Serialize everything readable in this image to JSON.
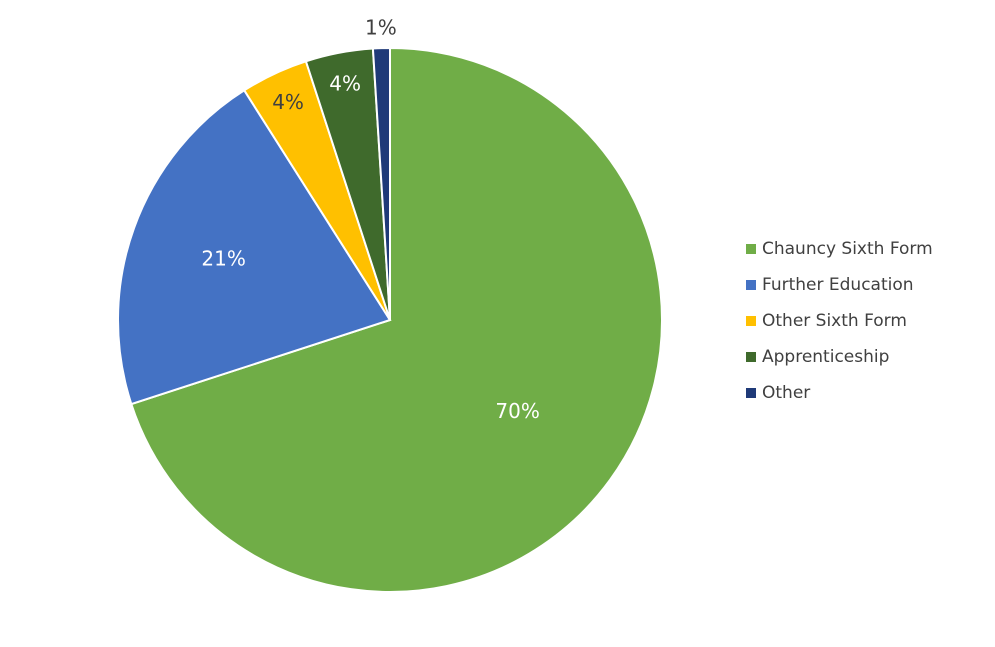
{
  "chart_data": {
    "type": "pie",
    "categories": [
      "Chauncy Sixth Form",
      "Further Education",
      "Other Sixth Form",
      "Apprenticeship",
      "Other"
    ],
    "values": [
      70,
      21,
      4,
      4,
      1
    ],
    "value_labels": [
      "70%",
      "21%",
      "4%",
      "4%",
      "1%"
    ],
    "colors": [
      "#70ad47",
      "#4472c4",
      "#ffc000",
      "#3f6a2c",
      "#1f3a78"
    ],
    "legend": "right"
  }
}
